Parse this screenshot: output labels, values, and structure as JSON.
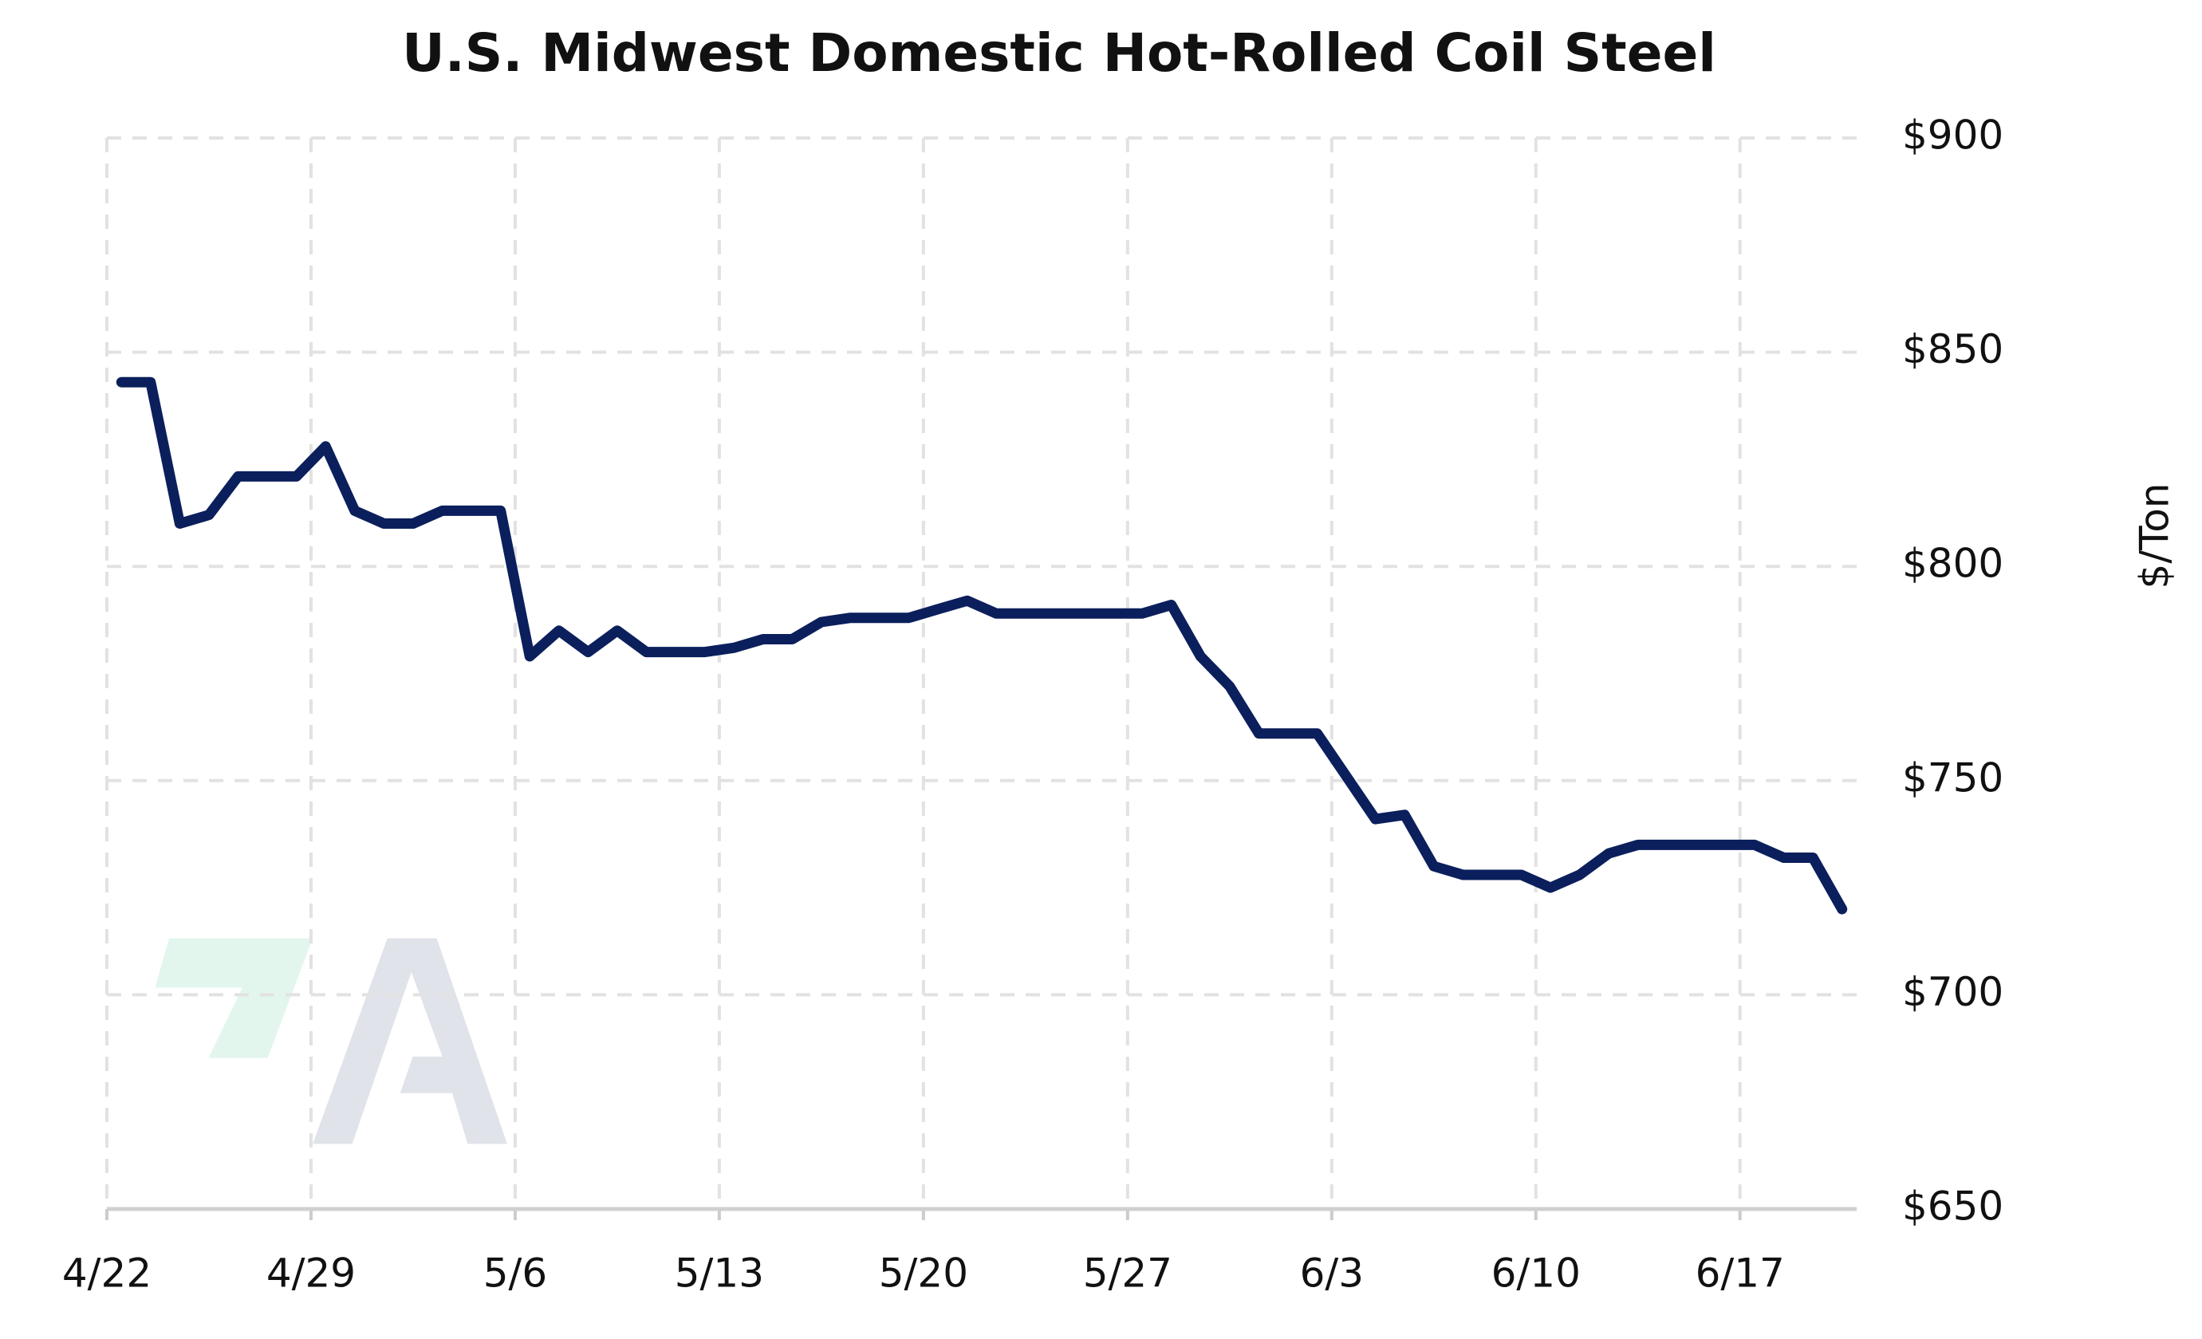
{
  "chart_data": {
    "type": "line",
    "title": "U.S. Midwest Domestic Hot-Rolled Coil Steel",
    "y_label": "$/Ton",
    "x": [
      "4/22",
      "4/23",
      "4/24",
      "4/25",
      "4/26",
      "4/27",
      "4/28",
      "4/29",
      "4/30",
      "5/1",
      "5/2",
      "5/3",
      "5/4",
      "5/5",
      "5/6",
      "5/7",
      "5/8",
      "5/9",
      "5/10",
      "5/11",
      "5/12",
      "5/13",
      "5/14",
      "5/15",
      "5/16",
      "5/17",
      "5/18",
      "5/19",
      "5/20",
      "5/21",
      "5/22",
      "5/23",
      "5/24",
      "5/25",
      "5/26",
      "5/27",
      "5/28",
      "5/29",
      "5/30",
      "5/31",
      "6/1",
      "6/2",
      "6/3",
      "6/4",
      "6/5",
      "6/6",
      "6/7",
      "6/8",
      "6/9",
      "6/10",
      "6/11",
      "6/12",
      "6/13",
      "6/14",
      "6/15",
      "6/16",
      "6/17",
      "6/18",
      "6/19",
      "6/20"
    ],
    "series": [
      {
        "name": "U.S. Midwest Domestic Hot-Rolled Coil Steel",
        "color": "#0b1f5c",
        "values": [
          843,
          843,
          810,
          812,
          821,
          821,
          821,
          828,
          813,
          810,
          810,
          813,
          813,
          813,
          779,
          785,
          780,
          785,
          780,
          780,
          780,
          781,
          783,
          783,
          787,
          788,
          788,
          788,
          790,
          792,
          789,
          789,
          789,
          789,
          789,
          789,
          791,
          779,
          772,
          761,
          761,
          761,
          751,
          741,
          742,
          730,
          728,
          728,
          728,
          725,
          728,
          733,
          735,
          735,
          735,
          735,
          735,
          732,
          732,
          720
        ]
      }
    ],
    "xlim": [
      "4/22",
      "6/21"
    ],
    "xticks": [
      "4/22",
      "4/29",
      "5/6",
      "5/13",
      "5/20",
      "5/27",
      "6/3",
      "6/10",
      "6/17"
    ],
    "ylim": [
      650,
      900
    ],
    "yticks": [
      {
        "value": 650,
        "label": "$650"
      },
      {
        "value": 700,
        "label": "$700"
      },
      {
        "value": 750,
        "label": "$750"
      },
      {
        "value": 800,
        "label": "$800"
      },
      {
        "value": 850,
        "label": "$850"
      },
      {
        "value": 900,
        "label": "$900"
      }
    ],
    "grid": true
  }
}
